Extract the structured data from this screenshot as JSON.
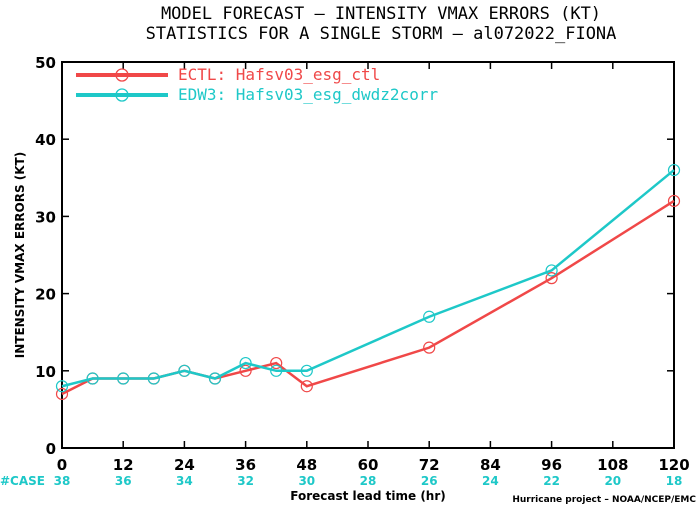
{
  "header": {
    "title_line1": "MODEL FORECAST – INTENSITY VMAX ERRORS (KT)",
    "title_line2": "STATISTICS FOR A SINGLE STORM – al072022_FIONA"
  },
  "footer": {
    "case_label": "#CASE",
    "credit": "Hurricane project – NOAA/NCEP/EMC"
  },
  "chart_data": {
    "type": "line",
    "xlabel": "Forecast lead time (hr)",
    "ylabel": "INTENSITY VMAX ERRORS (KT)",
    "xlim": [
      0,
      120
    ],
    "ylim": [
      0,
      50
    ],
    "xticks": [
      0,
      12,
      24,
      36,
      48,
      60,
      72,
      84,
      96,
      108,
      120
    ],
    "yticks": [
      0,
      10,
      20,
      30,
      40,
      50
    ],
    "cases": [
      {
        "x": 0,
        "n": 38
      },
      {
        "x": 12,
        "n": 36
      },
      {
        "x": 24,
        "n": 34
      },
      {
        "x": 36,
        "n": 32
      },
      {
        "x": 48,
        "n": 30
      },
      {
        "x": 60,
        "n": 28
      },
      {
        "x": 72,
        "n": 26
      },
      {
        "x": 84,
        "n": 24
      },
      {
        "x": 96,
        "n": 22
      },
      {
        "x": 108,
        "n": 20
      },
      {
        "x": 120,
        "n": 18
      }
    ],
    "legend_position": "top-left",
    "series": [
      {
        "name": "ECTL: Hafsv03_esg_ctl",
        "color": "#f04848",
        "x": [
          0,
          6,
          12,
          18,
          24,
          30,
          36,
          42,
          48,
          72,
          96,
          120
        ],
        "values": [
          7,
          9,
          9,
          9,
          10,
          9,
          10,
          11,
          8,
          13,
          22,
          32
        ]
      },
      {
        "name": "EDW3: Hafsv03_esg_dwdz2corr",
        "color": "#1ec8c8",
        "x": [
          0,
          6,
          12,
          18,
          24,
          30,
          36,
          42,
          48,
          72,
          96,
          120
        ],
        "values": [
          8,
          9,
          9,
          9,
          10,
          9,
          11,
          10,
          10,
          17,
          23,
          36
        ]
      }
    ],
    "case_color": "#1ec8c8",
    "tick_color": "#000000"
  }
}
